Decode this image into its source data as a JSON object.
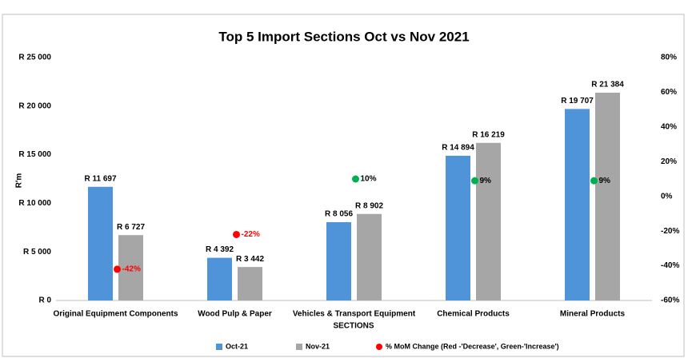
{
  "chart_data": {
    "type": "bar",
    "title": "Top 5 Import Sections Oct vs Nov 2021",
    "x_label": "SECTIONS",
    "y_label": "R'm",
    "categories": [
      "Original Equipment Components",
      "Wood Pulp & Paper",
      "Vehicles & Transport Equipment",
      "Chemical Products",
      "Mineral Products"
    ],
    "series": [
      {
        "name": "Oct-21",
        "color": "#4f93d8",
        "values": [
          11697,
          4392,
          8056,
          14894,
          19707
        ],
        "value_labels": [
          "R 11 697",
          "R 4 392",
          "R 8 056",
          "R 14 894",
          "R 19 707"
        ]
      },
      {
        "name": "Nov-21",
        "color": "#a6a6a6",
        "values": [
          6727,
          3442,
          8902,
          16219,
          21384
        ],
        "value_labels": [
          "R 6 727",
          "R 3 442",
          "R 8 902",
          "R 16 219",
          "R 21 384"
        ]
      },
      {
        "name": "% MoM Change (Red -'Decrease', Green-'Increase')",
        "type": "scatter",
        "axis": "y2",
        "color": "#ff0000",
        "point_colors": [
          "#ff0000",
          "#ff0000",
          "#00b050",
          "#00b050",
          "#00b050"
        ],
        "label_colors": [
          "#ff0000",
          "#ff0000",
          "#000000",
          "#000000",
          "#000000"
        ],
        "values": [
          -42,
          -22,
          10,
          9,
          9
        ],
        "value_labels": [
          "-42%",
          "-22%",
          "10%",
          "9%",
          "9%"
        ]
      }
    ],
    "ylim": [
      0,
      25000
    ],
    "yticks": [
      {
        "value": 0,
        "label": "R 0"
      },
      {
        "value": 5000,
        "label": "R 5 000"
      },
      {
        "value": 10000,
        "label": "R 10 000"
      },
      {
        "value": 15000,
        "label": "R 15 000"
      },
      {
        "value": 20000,
        "label": "R 20 000"
      },
      {
        "value": 25000,
        "label": "R 25 000"
      }
    ],
    "y2lim": [
      -60,
      80
    ],
    "y2ticks": [
      {
        "value": -60,
        "label": "-60%"
      },
      {
        "value": -40,
        "label": "-40%"
      },
      {
        "value": -20,
        "label": "-20%"
      },
      {
        "value": 0,
        "label": "0%"
      },
      {
        "value": 20,
        "label": "20%"
      },
      {
        "value": 40,
        "label": "40%"
      },
      {
        "value": 60,
        "label": "60%"
      },
      {
        "value": 80,
        "label": "80%"
      }
    ],
    "grid": false,
    "legend": "bottom"
  }
}
